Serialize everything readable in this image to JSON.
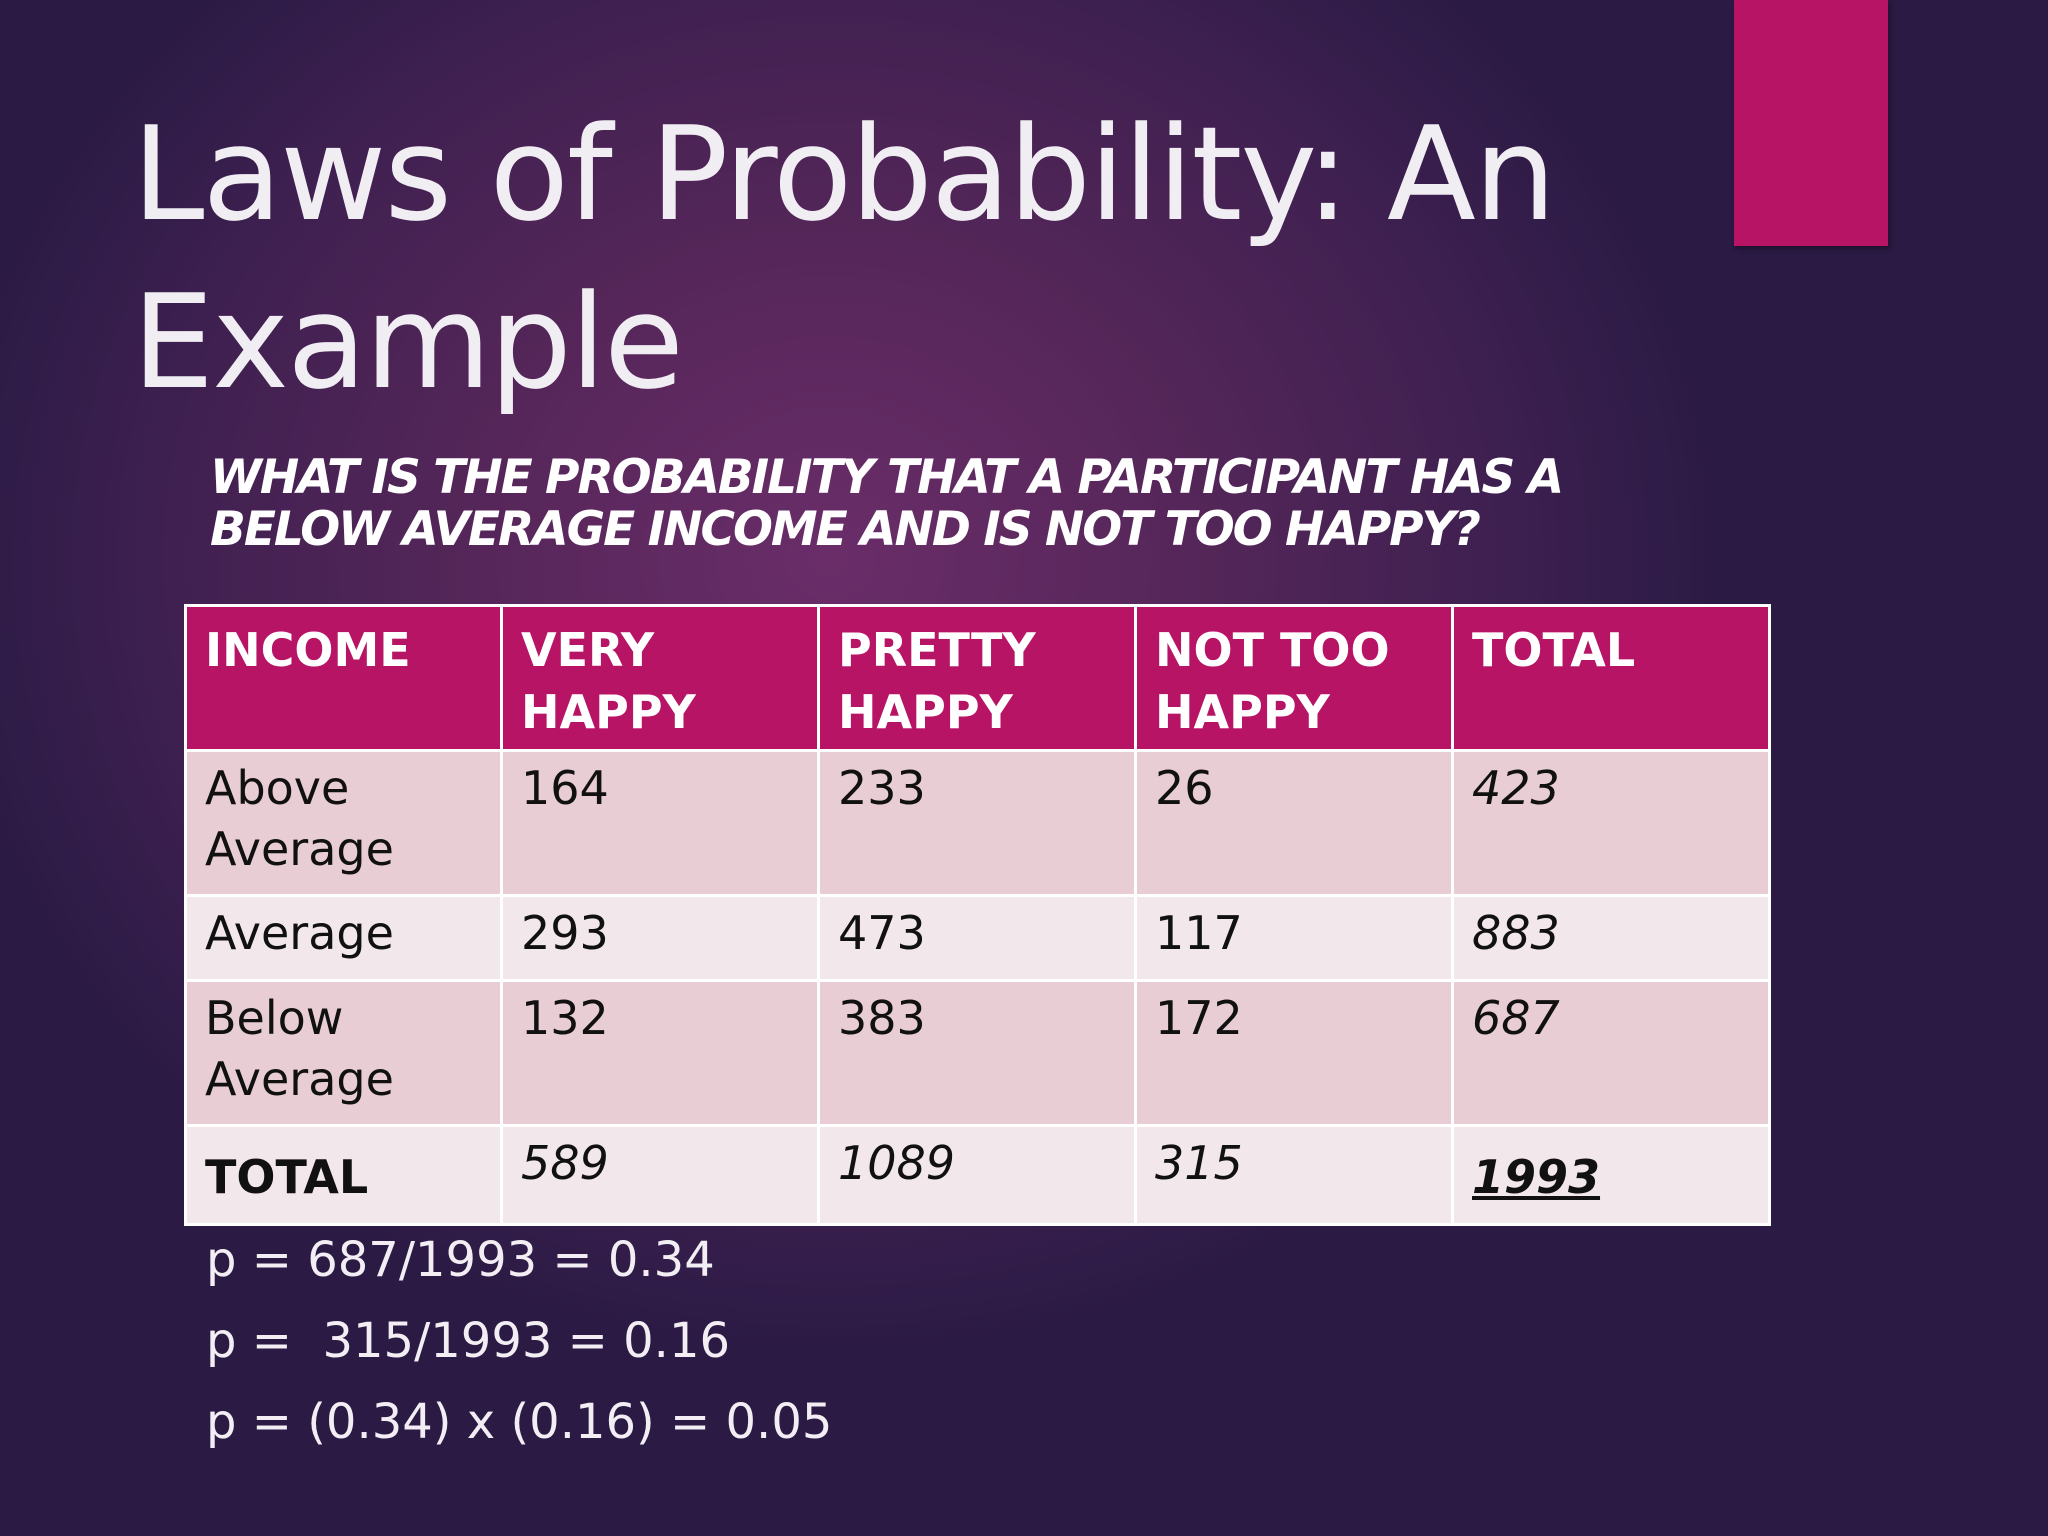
{
  "slide": {
    "title_line1": "Laws of Probability: An",
    "title_line2": "Example",
    "question_line1": "WHAT IS THE PROBABILITY THAT A PARTICIPANT HAS A",
    "question_line2": "BELOW AVERAGE INCOME AND IS NOT TOO HAPPY?",
    "accent_color": "#b71465"
  },
  "table": {
    "headers": [
      [
        "INCOME",
        ""
      ],
      [
        "VERY",
        "HAPPY"
      ],
      [
        "PRETTY",
        "HAPPY"
      ],
      [
        "NOT TOO",
        "HAPPY"
      ],
      [
        "TOTAL",
        ""
      ]
    ],
    "rows": [
      {
        "label": [
          "Above",
          "Average"
        ],
        "values": [
          "164",
          "233",
          "26",
          "423"
        ]
      },
      {
        "label": [
          "Average",
          ""
        ],
        "values": [
          "293",
          "473",
          "117",
          "883"
        ]
      },
      {
        "label": [
          "Below",
          "Average"
        ],
        "values": [
          "132",
          "383",
          "172",
          "687"
        ]
      },
      {
        "label": [
          "TOTAL",
          ""
        ],
        "values": [
          "589",
          "1089",
          "315",
          "1993"
        ]
      }
    ],
    "header_color": "#b71465"
  },
  "calculations": [
    "p = 687/1993 = 0.34",
    "p =  315/1993 = 0.16",
    "p = (0.34) x (0.16) = 0.05"
  ]
}
